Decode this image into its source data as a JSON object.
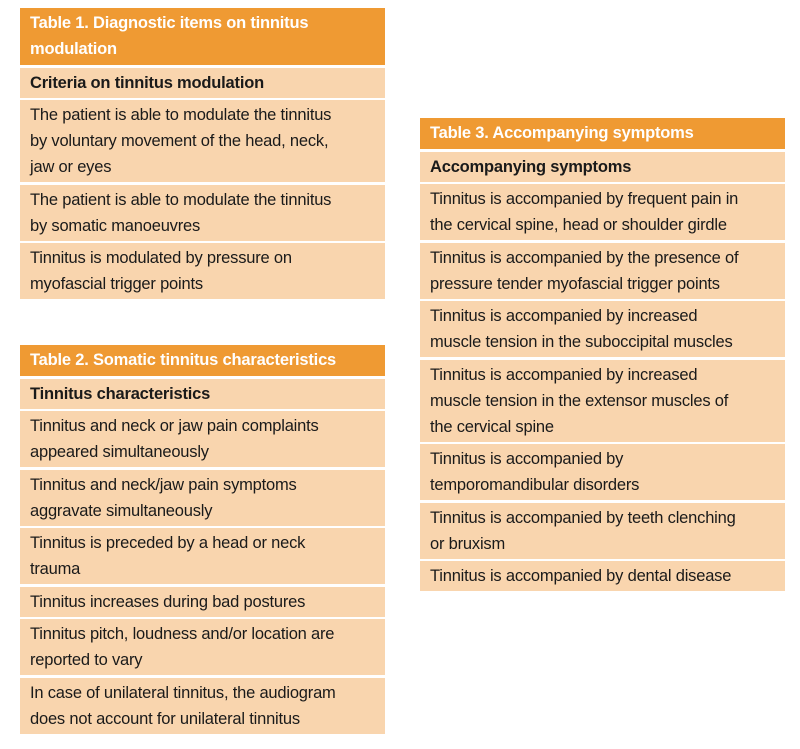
{
  "colors": {
    "header": "#ef9a33",
    "row": "#f9d5ae"
  },
  "table1": {
    "title": "Table 1. Diagnostic items on tinnitus\nmodulation",
    "subheader": "Criteria on tinnitus modulation",
    "rows": [
      "The patient is able to modulate the tinnitus\nby voluntary movement of the head, neck,\njaw or eyes",
      "The patient is able to modulate the tinnitus\nby somatic manoeuvres",
      "Tinnitus is modulated by pressure on\nmyofascial trigger points"
    ]
  },
  "table2": {
    "title": "Table 2. Somatic tinnitus characteristics",
    "subheader": "Tinnitus characteristics",
    "rows": [
      "Tinnitus and neck or jaw pain complaints\nappeared simultaneously",
      "Tinnitus and neck/jaw pain symptoms\naggravate simultaneously",
      "Tinnitus is preceded by a head or neck\ntrauma",
      "Tinnitus increases during bad postures",
      "Tinnitus pitch, loudness and/or location are\nreported to vary",
      "In case of unilateral tinnitus, the audiogram\ndoes not account for unilateral tinnitus"
    ]
  },
  "table3": {
    "title": "Table 3. Accompanying symptoms",
    "subheader": "Accompanying symptoms",
    "rows": [
      "Tinnitus is accompanied by frequent pain in\nthe cervical spine, head or shoulder girdle",
      "Tinnitus is accompanied by the presence of\npressure tender myofascial trigger points",
      "Tinnitus is accompanied by increased\nmuscle tension in the suboccipital muscles",
      "Tinnitus is accompanied by increased\nmuscle tension in the extensor muscles of\nthe cervical spine",
      "Tinnitus is accompanied by\ntemporomandibular disorders",
      "Tinnitus is accompanied by teeth clenching\nor bruxism",
      "Tinnitus is accompanied by dental disease"
    ]
  }
}
